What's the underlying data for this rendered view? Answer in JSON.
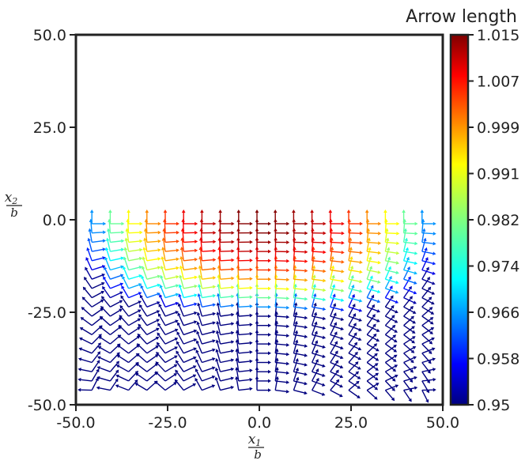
{
  "chart_data": {
    "type": "quiver",
    "title": "",
    "xlabel": {
      "numerator": "x1",
      "num_base": "x",
      "num_sub": "1",
      "denominator": "b"
    },
    "ylabel": {
      "numerator": "x2",
      "num_base": "x",
      "num_sub": "2",
      "denominator": "b"
    },
    "xlim": [
      -50,
      50
    ],
    "ylim": [
      -50,
      50
    ],
    "x_ticks": [
      "-50.0",
      "-25.0",
      "0.0",
      "25.0",
      "50.0"
    ],
    "y_ticks": [
      "50.0",
      "25.0",
      "0.0",
      "-25.0",
      "-50.0"
    ],
    "grid": false,
    "colorbar": {
      "title": "Arrow length",
      "range": [
        0.95,
        1.015
      ],
      "colormap": "jet",
      "ticks": [
        "1.015",
        "1.007",
        "0.999",
        "0.991",
        "0.982",
        "0.974",
        "0.966",
        "0.958",
        "0.95"
      ]
    },
    "arrow_grid": {
      "x_start": -45,
      "x_step": 5,
      "count_x": 19,
      "y_start": -45,
      "y_step": 2.5,
      "count_y": 19
    },
    "colors": {
      "axis": "#222222"
    }
  }
}
